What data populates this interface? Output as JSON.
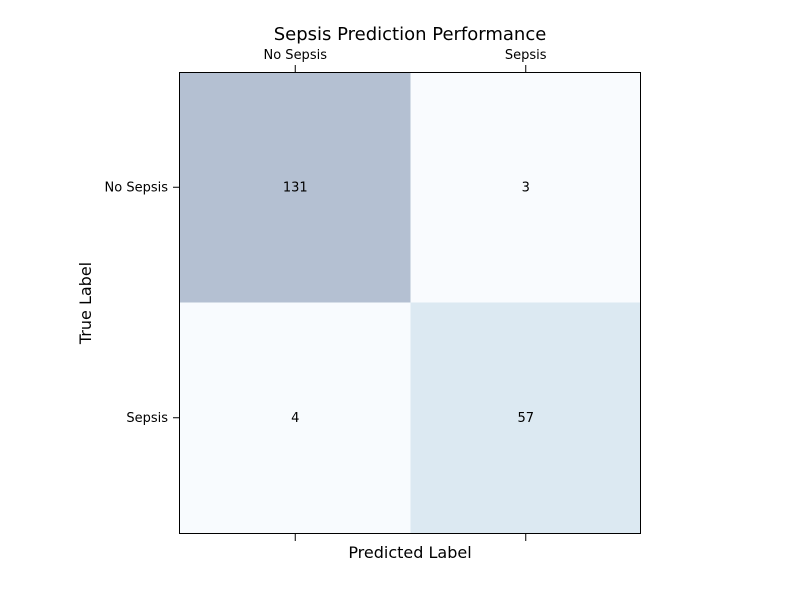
{
  "chart_data": {
    "type": "heatmap",
    "title": "Sepsis Prediction Performance",
    "xlabel": "Predicted Label",
    "ylabel": "True Label",
    "x_categories": [
      "No Sepsis",
      "Sepsis"
    ],
    "y_categories": [
      "No Sepsis",
      "Sepsis"
    ],
    "values": [
      [
        131,
        3
      ],
      [
        4,
        57
      ]
    ],
    "x_tick_position": "top",
    "grid": false,
    "colormap": {
      "low": "#f9fbfe",
      "high": "#b4c0d2"
    }
  }
}
